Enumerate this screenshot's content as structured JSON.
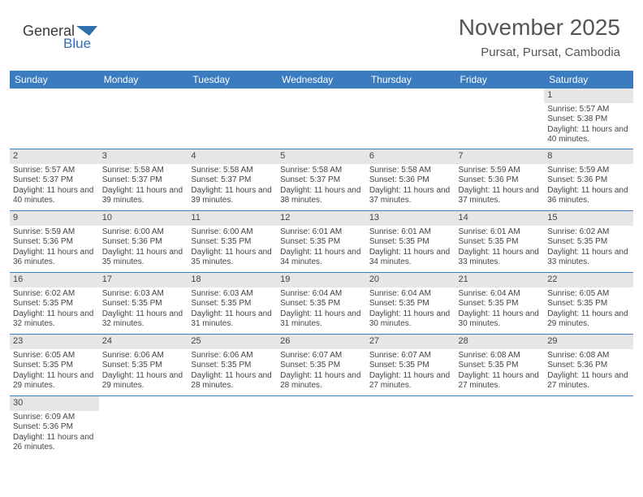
{
  "colors": {
    "header_bg": "#3b7bbf",
    "header_text": "#ffffff",
    "daynum_bg": "#e6e6e6",
    "cell_border": "#3b7bbf",
    "body_text": "#444444",
    "title_text": "#555555",
    "page_bg": "#ffffff",
    "logo_dark": "#3a3a3a",
    "logo_blue": "#2f6fb0"
  },
  "logo": {
    "text1": "General",
    "text2": "Blue"
  },
  "title": "November 2025",
  "location": "Pursat, Pursat, Cambodia",
  "weekdays": [
    "Sunday",
    "Monday",
    "Tuesday",
    "Wednesday",
    "Thursday",
    "Friday",
    "Saturday"
  ],
  "weeks": [
    [
      {
        "n": "",
        "sr": "",
        "ss": "",
        "dl": ""
      },
      {
        "n": "",
        "sr": "",
        "ss": "",
        "dl": ""
      },
      {
        "n": "",
        "sr": "",
        "ss": "",
        "dl": ""
      },
      {
        "n": "",
        "sr": "",
        "ss": "",
        "dl": ""
      },
      {
        "n": "",
        "sr": "",
        "ss": "",
        "dl": ""
      },
      {
        "n": "",
        "sr": "",
        "ss": "",
        "dl": ""
      },
      {
        "n": "1",
        "sr": "Sunrise: 5:57 AM",
        "ss": "Sunset: 5:38 PM",
        "dl": "Daylight: 11 hours and 40 minutes."
      }
    ],
    [
      {
        "n": "2",
        "sr": "Sunrise: 5:57 AM",
        "ss": "Sunset: 5:37 PM",
        "dl": "Daylight: 11 hours and 40 minutes."
      },
      {
        "n": "3",
        "sr": "Sunrise: 5:58 AM",
        "ss": "Sunset: 5:37 PM",
        "dl": "Daylight: 11 hours and 39 minutes."
      },
      {
        "n": "4",
        "sr": "Sunrise: 5:58 AM",
        "ss": "Sunset: 5:37 PM",
        "dl": "Daylight: 11 hours and 39 minutes."
      },
      {
        "n": "5",
        "sr": "Sunrise: 5:58 AM",
        "ss": "Sunset: 5:37 PM",
        "dl": "Daylight: 11 hours and 38 minutes."
      },
      {
        "n": "6",
        "sr": "Sunrise: 5:58 AM",
        "ss": "Sunset: 5:36 PM",
        "dl": "Daylight: 11 hours and 37 minutes."
      },
      {
        "n": "7",
        "sr": "Sunrise: 5:59 AM",
        "ss": "Sunset: 5:36 PM",
        "dl": "Daylight: 11 hours and 37 minutes."
      },
      {
        "n": "8",
        "sr": "Sunrise: 5:59 AM",
        "ss": "Sunset: 5:36 PM",
        "dl": "Daylight: 11 hours and 36 minutes."
      }
    ],
    [
      {
        "n": "9",
        "sr": "Sunrise: 5:59 AM",
        "ss": "Sunset: 5:36 PM",
        "dl": "Daylight: 11 hours and 36 minutes."
      },
      {
        "n": "10",
        "sr": "Sunrise: 6:00 AM",
        "ss": "Sunset: 5:36 PM",
        "dl": "Daylight: 11 hours and 35 minutes."
      },
      {
        "n": "11",
        "sr": "Sunrise: 6:00 AM",
        "ss": "Sunset: 5:35 PM",
        "dl": "Daylight: 11 hours and 35 minutes."
      },
      {
        "n": "12",
        "sr": "Sunrise: 6:01 AM",
        "ss": "Sunset: 5:35 PM",
        "dl": "Daylight: 11 hours and 34 minutes."
      },
      {
        "n": "13",
        "sr": "Sunrise: 6:01 AM",
        "ss": "Sunset: 5:35 PM",
        "dl": "Daylight: 11 hours and 34 minutes."
      },
      {
        "n": "14",
        "sr": "Sunrise: 6:01 AM",
        "ss": "Sunset: 5:35 PM",
        "dl": "Daylight: 11 hours and 33 minutes."
      },
      {
        "n": "15",
        "sr": "Sunrise: 6:02 AM",
        "ss": "Sunset: 5:35 PM",
        "dl": "Daylight: 11 hours and 33 minutes."
      }
    ],
    [
      {
        "n": "16",
        "sr": "Sunrise: 6:02 AM",
        "ss": "Sunset: 5:35 PM",
        "dl": "Daylight: 11 hours and 32 minutes."
      },
      {
        "n": "17",
        "sr": "Sunrise: 6:03 AM",
        "ss": "Sunset: 5:35 PM",
        "dl": "Daylight: 11 hours and 32 minutes."
      },
      {
        "n": "18",
        "sr": "Sunrise: 6:03 AM",
        "ss": "Sunset: 5:35 PM",
        "dl": "Daylight: 11 hours and 31 minutes."
      },
      {
        "n": "19",
        "sr": "Sunrise: 6:04 AM",
        "ss": "Sunset: 5:35 PM",
        "dl": "Daylight: 11 hours and 31 minutes."
      },
      {
        "n": "20",
        "sr": "Sunrise: 6:04 AM",
        "ss": "Sunset: 5:35 PM",
        "dl": "Daylight: 11 hours and 30 minutes."
      },
      {
        "n": "21",
        "sr": "Sunrise: 6:04 AM",
        "ss": "Sunset: 5:35 PM",
        "dl": "Daylight: 11 hours and 30 minutes."
      },
      {
        "n": "22",
        "sr": "Sunrise: 6:05 AM",
        "ss": "Sunset: 5:35 PM",
        "dl": "Daylight: 11 hours and 29 minutes."
      }
    ],
    [
      {
        "n": "23",
        "sr": "Sunrise: 6:05 AM",
        "ss": "Sunset: 5:35 PM",
        "dl": "Daylight: 11 hours and 29 minutes."
      },
      {
        "n": "24",
        "sr": "Sunrise: 6:06 AM",
        "ss": "Sunset: 5:35 PM",
        "dl": "Daylight: 11 hours and 29 minutes."
      },
      {
        "n": "25",
        "sr": "Sunrise: 6:06 AM",
        "ss": "Sunset: 5:35 PM",
        "dl": "Daylight: 11 hours and 28 minutes."
      },
      {
        "n": "26",
        "sr": "Sunrise: 6:07 AM",
        "ss": "Sunset: 5:35 PM",
        "dl": "Daylight: 11 hours and 28 minutes."
      },
      {
        "n": "27",
        "sr": "Sunrise: 6:07 AM",
        "ss": "Sunset: 5:35 PM",
        "dl": "Daylight: 11 hours and 27 minutes."
      },
      {
        "n": "28",
        "sr": "Sunrise: 6:08 AM",
        "ss": "Sunset: 5:35 PM",
        "dl": "Daylight: 11 hours and 27 minutes."
      },
      {
        "n": "29",
        "sr": "Sunrise: 6:08 AM",
        "ss": "Sunset: 5:36 PM",
        "dl": "Daylight: 11 hours and 27 minutes."
      }
    ],
    [
      {
        "n": "30",
        "sr": "Sunrise: 6:09 AM",
        "ss": "Sunset: 5:36 PM",
        "dl": "Daylight: 11 hours and 26 minutes."
      },
      {
        "n": "",
        "sr": "",
        "ss": "",
        "dl": ""
      },
      {
        "n": "",
        "sr": "",
        "ss": "",
        "dl": ""
      },
      {
        "n": "",
        "sr": "",
        "ss": "",
        "dl": ""
      },
      {
        "n": "",
        "sr": "",
        "ss": "",
        "dl": ""
      },
      {
        "n": "",
        "sr": "",
        "ss": "",
        "dl": ""
      },
      {
        "n": "",
        "sr": "",
        "ss": "",
        "dl": ""
      }
    ]
  ]
}
